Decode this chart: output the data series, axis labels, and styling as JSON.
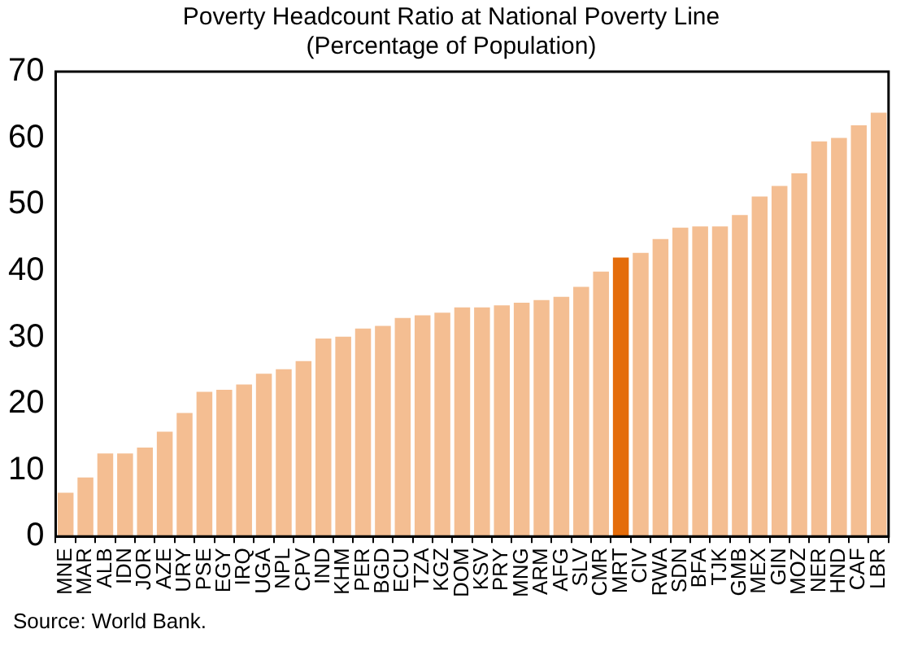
{
  "chart_data": {
    "type": "bar",
    "title": [
      "Poverty Headcount Ratio at National Poverty Line",
      "(Percentage of Population)"
    ],
    "categories": [
      "MNE",
      "MAR",
      "ALB",
      "IDN",
      "JOR",
      "AZE",
      "URY",
      "PSE",
      "EGY",
      "IRQ",
      "UGA",
      "NPL",
      "CPV",
      "IND",
      "KHM",
      "PER",
      "BGD",
      "ECU",
      "TZA",
      "KGZ",
      "DOM",
      "KSV",
      "PRY",
      "MNG",
      "ARM",
      "AFG",
      "SLV",
      "CMR",
      "MRT",
      "CIV",
      "RWA",
      "SDN",
      "BFA",
      "TJK",
      "GMB",
      "MEX",
      "GIN",
      "MOZ",
      "NER",
      "HND",
      "CAF",
      "LBR"
    ],
    "values": [
      6.6,
      8.9,
      12.5,
      12.5,
      13.4,
      15.8,
      18.6,
      21.8,
      22.1,
      22.9,
      24.5,
      25.2,
      26.4,
      29.8,
      30.1,
      31.3,
      31.7,
      32.9,
      33.3,
      33.7,
      34.5,
      34.5,
      34.8,
      35.2,
      35.6,
      36.1,
      37.6,
      39.9,
      42.0,
      42.7,
      44.8,
      46.5,
      46.7,
      46.7,
      48.4,
      51.2,
      52.8,
      54.7,
      59.5,
      60.0,
      61.9,
      63.8
    ],
    "colors": [
      "#f4be92",
      "#f4be92",
      "#f4be92",
      "#f4be92",
      "#f4be92",
      "#f4be92",
      "#f4be92",
      "#f4be92",
      "#f4be92",
      "#f4be92",
      "#f4be92",
      "#f4be92",
      "#f4be92",
      "#f4be92",
      "#f4be92",
      "#f4be92",
      "#f4be92",
      "#f4be92",
      "#f4be92",
      "#f4be92",
      "#f4be92",
      "#f4be92",
      "#f4be92",
      "#f4be92",
      "#f4be92",
      "#f4be92",
      "#f4be92",
      "#f4be92",
      "#e46c0a",
      "#f4be92",
      "#f4be92",
      "#f4be92",
      "#f4be92",
      "#f4be92",
      "#f4be92",
      "#f4be92",
      "#f4be92",
      "#f4be92",
      "#f4be92",
      "#f4be92",
      "#f4be92",
      "#f4be92"
    ],
    "ylim": [
      0,
      70
    ],
    "yticks": [
      0,
      10,
      20,
      30,
      40,
      50,
      60,
      70
    ],
    "grid": false,
    "legend": false,
    "annotations": [
      "Source: World Bank."
    ]
  }
}
